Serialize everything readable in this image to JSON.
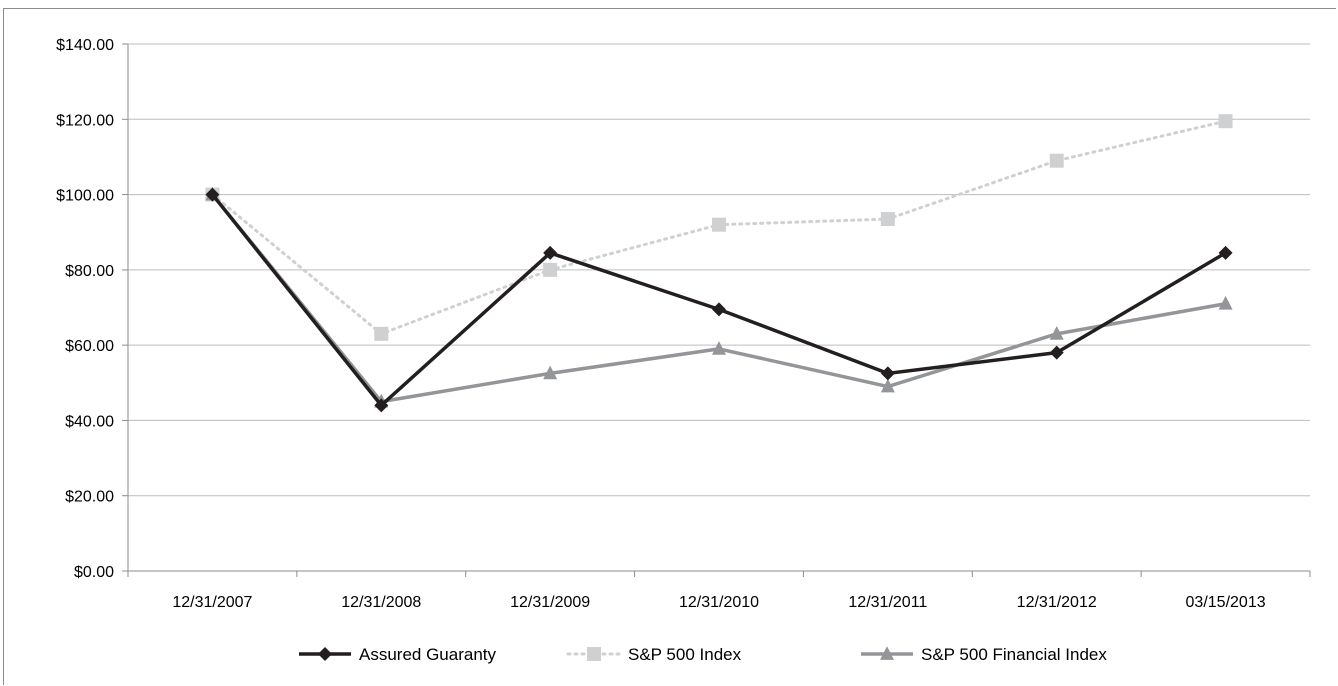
{
  "chart_data": {
    "type": "line",
    "title": "",
    "xlabel": "",
    "ylabel": "",
    "categories": [
      "12/31/2007",
      "12/31/2008",
      "12/31/2009",
      "12/31/2010",
      "12/31/2011",
      "12/31/2012",
      "03/15/2013"
    ],
    "ylim": [
      0,
      140
    ],
    "yticks": [
      0,
      20,
      40,
      60,
      80,
      100,
      120,
      140
    ],
    "ytick_labels": [
      "$0.00",
      "$20.00",
      "$40.00",
      "$60.00",
      "$80.00",
      "$100.00",
      "$120.00",
      "$140.00"
    ],
    "grid": "horizontal",
    "legend_position": "bottom",
    "series": [
      {
        "name": "Assured Guaranty",
        "values": [
          100,
          44,
          84.5,
          69.5,
          52.5,
          58,
          84.5
        ],
        "color": "#231f20",
        "marker": "diamond",
        "line_style": "solid"
      },
      {
        "name": "S&P 500 Index",
        "values": [
          100,
          63,
          80,
          92,
          93.5,
          109,
          119.5
        ],
        "color": "#cfd0d2",
        "marker": "square",
        "line_style": "dotted"
      },
      {
        "name": "S&P 500 Financial Index",
        "values": [
          100,
          45,
          52.5,
          59,
          49,
          63,
          71
        ],
        "color": "#939598",
        "marker": "triangle",
        "line_style": "solid"
      }
    ]
  }
}
